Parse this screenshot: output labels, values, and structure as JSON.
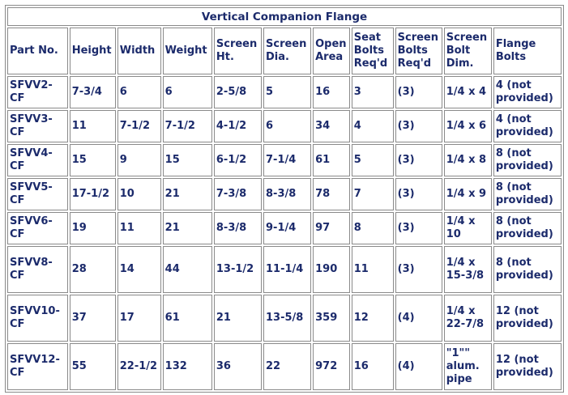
{
  "table": {
    "title": "Vertical Companion Flange",
    "headers": [
      "Part No.",
      "Height",
      "Width",
      "Weight",
      "Screen Ht.",
      "Screen Dia.",
      "Open Area",
      "Seat Bolts Req'd",
      "Screen Bolts Req'd",
      "Screen Bolt Dim.",
      "Flange Bolts"
    ],
    "rows": [
      [
        "SFVV2-CF",
        "7-3/4",
        "6",
        "6",
        "2-5/8",
        "5",
        "16",
        "3",
        "(3)",
        "1/4 x 4",
        "4 (not provided)"
      ],
      [
        "SFVV3-CF",
        "11",
        "7-1/2",
        "7-1/2",
        "4-1/2",
        "6",
        "34",
        "4",
        "(3)",
        "1/4 x 6",
        "4 (not provided)"
      ],
      [
        "SFVV4-CF",
        "15",
        "9",
        "15",
        "6-1/2",
        "7-1/4",
        "61",
        "5",
        "(3)",
        "1/4 x 8",
        "8 (not provided)"
      ],
      [
        "SFVV5-CF",
        "17-1/2",
        "10",
        "21",
        "7-3/8",
        "8-3/8",
        "78",
        "7",
        "(3)",
        "1/4 x 9",
        "8 (not provided)"
      ],
      [
        "SFVV6-CF",
        "19",
        "11",
        "21",
        "8-3/8",
        "9-1/4",
        "97",
        "8",
        "(3)",
        "1/4 x 10",
        "8 (not provided)"
      ],
      [
        "SFVV8-CF",
        "28",
        "14",
        "44",
        "13-1/2",
        "11-1/4",
        "190",
        "11",
        "(3)",
        "1/4 x 15-3/8",
        "8 (not provided)"
      ],
      [
        "SFVV10-CF",
        "37",
        "17",
        "61",
        "21",
        "13-5/8",
        "359",
        "12",
        "(4)",
        "1/4 x 22-7/8",
        "12 (not provided)"
      ],
      [
        "SFVV12-CF",
        "55",
        "22-1/2",
        "132",
        "36",
        "22",
        "972",
        "16",
        "(4)",
        "\"1\"\" alum. pipe",
        "12 (not provided)"
      ]
    ]
  }
}
